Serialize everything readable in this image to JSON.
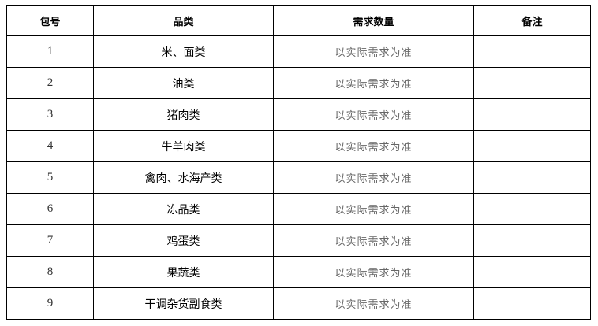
{
  "headers": [
    "包号",
    "品类",
    "需求数量",
    "备注"
  ],
  "rows": [
    {
      "no": "1",
      "category": "米、面类",
      "quantity": "以实际需求为准",
      "note": ""
    },
    {
      "no": "2",
      "category": "油类",
      "quantity": "以实际需求为准",
      "note": ""
    },
    {
      "no": "3",
      "category": "猪肉类",
      "quantity": "以实际需求为准",
      "note": ""
    },
    {
      "no": "4",
      "category": "牛羊肉类",
      "quantity": "以实际需求为准",
      "note": ""
    },
    {
      "no": "5",
      "category": "禽肉、水海产类",
      "quantity": "以实际需求为准",
      "note": ""
    },
    {
      "no": "6",
      "category": "冻品类",
      "quantity": "以实际需求为准",
      "note": ""
    },
    {
      "no": "7",
      "category": "鸡蛋类",
      "quantity": "以实际需求为准",
      "note": ""
    },
    {
      "no": "8",
      "category": "果蔬类",
      "quantity": "以实际需求为准",
      "note": ""
    },
    {
      "no": "9",
      "category": "干调杂货副食类",
      "quantity": "以实际需求为准",
      "note": ""
    }
  ]
}
